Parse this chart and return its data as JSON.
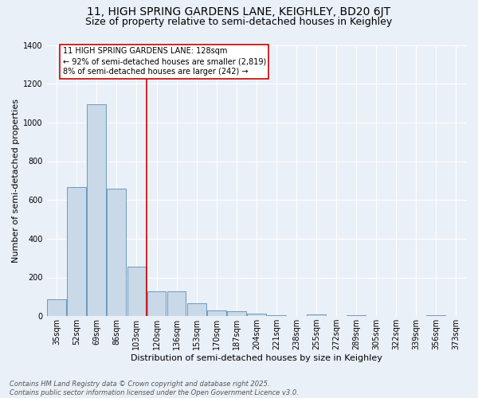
{
  "title_line1": "11, HIGH SPRING GARDENS LANE, KEIGHLEY, BD20 6JT",
  "title_line2": "Size of property relative to semi-detached houses in Keighley",
  "xlabel": "Distribution of semi-detached houses by size in Keighley",
  "ylabel": "Number of semi-detached properties",
  "categories": [
    "35sqm",
    "52sqm",
    "69sqm",
    "86sqm",
    "103sqm",
    "120sqm",
    "136sqm",
    "153sqm",
    "170sqm",
    "187sqm",
    "204sqm",
    "221sqm",
    "238sqm",
    "255sqm",
    "272sqm",
    "289sqm",
    "305sqm",
    "322sqm",
    "339sqm",
    "356sqm",
    "373sqm"
  ],
  "values": [
    85,
    665,
    1095,
    660,
    255,
    130,
    130,
    65,
    30,
    25,
    15,
    5,
    0,
    10,
    0,
    5,
    0,
    0,
    0,
    5,
    0
  ],
  "bar_color": "#c9d9e8",
  "bar_edge_color": "#5b8db8",
  "annotation_line1": "11 HIGH SPRING GARDENS LANE: 128sqm",
  "annotation_line2": "← 92% of semi-detached houses are smaller (2,819)",
  "annotation_line3": "8% of semi-detached houses are larger (242) →",
  "annotation_box_color": "#ffffff",
  "annotation_box_edge_color": "#cc0000",
  "vline_color": "#cc0000",
  "vline_position": 4.5,
  "ylim": [
    0,
    1400
  ],
  "yticks": [
    0,
    200,
    400,
    600,
    800,
    1000,
    1200,
    1400
  ],
  "footer_line1": "Contains HM Land Registry data © Crown copyright and database right 2025.",
  "footer_line2": "Contains public sector information licensed under the Open Government Licence v3.0.",
  "bg_color": "#eaf0f7",
  "plot_bg_color": "#eaf0f7",
  "grid_color": "#ffffff",
  "title_fontsize": 10,
  "subtitle_fontsize": 9,
  "ylabel_fontsize": 8,
  "xlabel_fontsize": 8,
  "tick_fontsize": 7,
  "footer_fontsize": 6,
  "annot_fontsize": 7
}
